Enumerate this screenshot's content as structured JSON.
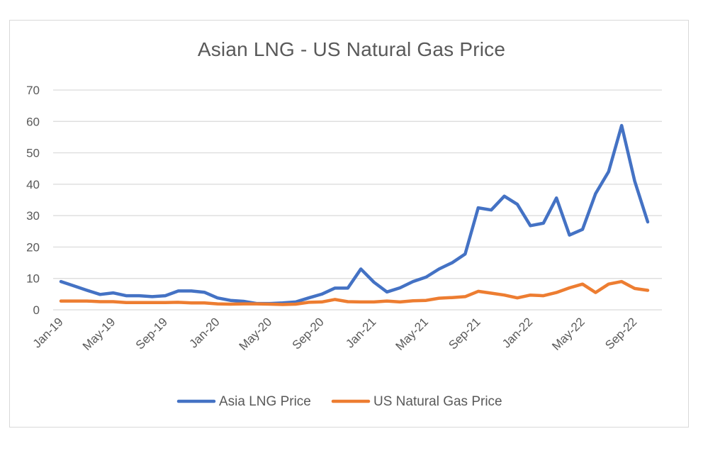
{
  "chart_data": {
    "type": "line",
    "title": "Asian LNG - US Natural Gas Price",
    "xlabel": "",
    "ylabel": "",
    "ylim": [
      0,
      70
    ],
    "yticks": [
      "0",
      "10",
      "20",
      "30",
      "40",
      "50",
      "60",
      "70"
    ],
    "x": [
      "Jan-19",
      "Feb-19",
      "Mar-19",
      "Apr-19",
      "May-19",
      "Jun-19",
      "Jul-19",
      "Aug-19",
      "Sep-19",
      "Oct-19",
      "Nov-19",
      "Dec-19",
      "Jan-20",
      "Feb-20",
      "Mar-20",
      "Apr-20",
      "May-20",
      "Jun-20",
      "Jul-20",
      "Aug-20",
      "Sep-20",
      "Oct-20",
      "Nov-20",
      "Dec-20",
      "Jan-21",
      "Feb-21",
      "Mar-21",
      "Apr-21",
      "May-21",
      "Jun-21",
      "Jul-21",
      "Aug-21",
      "Sep-21",
      "Oct-21",
      "Nov-21",
      "Dec-21",
      "Jan-22",
      "Feb-22",
      "Mar-22",
      "Apr-22",
      "May-22",
      "Jun-22",
      "Jul-22",
      "Aug-22",
      "Sep-22",
      "Oct-22"
    ],
    "xticks": [
      "Jan-19",
      "May-19",
      "Sep-19",
      "Jan-20",
      "May-20",
      "Sep-20",
      "Jan-21",
      "May-21",
      "Sep-21",
      "Jan-22",
      "May-22",
      "Sep-22"
    ],
    "grid": true,
    "legend": "bottom",
    "series": [
      {
        "name": "Asia LNG Price",
        "color": "#4472c4",
        "values": [
          9.0,
          7.6,
          6.2,
          4.9,
          5.4,
          4.5,
          4.5,
          4.2,
          4.5,
          6.0,
          6.0,
          5.6,
          3.8,
          3.0,
          2.7,
          2.0,
          2.0,
          2.2,
          2.5,
          3.8,
          5.0,
          6.9,
          6.9,
          13.0,
          8.8,
          5.7,
          7.0,
          9.0,
          10.4,
          13.0,
          15.0,
          17.8,
          32.5,
          31.8,
          36.2,
          33.6,
          26.8,
          27.6,
          35.6,
          23.8,
          25.6,
          37.0,
          44.0,
          58.7,
          41.0,
          28.0
        ]
      },
      {
        "name": "US Natural Gas Price",
        "color": "#ed7d31",
        "values": [
          2.8,
          2.8,
          2.8,
          2.6,
          2.6,
          2.3,
          2.3,
          2.3,
          2.3,
          2.4,
          2.2,
          2.2,
          1.9,
          1.8,
          1.9,
          1.9,
          1.8,
          1.7,
          1.8,
          2.4,
          2.5,
          3.3,
          2.6,
          2.5,
          2.5,
          2.8,
          2.5,
          2.9,
          3.0,
          3.7,
          3.9,
          4.2,
          5.9,
          5.3,
          4.7,
          3.8,
          4.7,
          4.5,
          5.5,
          7.0,
          8.2,
          5.5,
          8.2,
          9.0,
          6.8,
          6.2
        ]
      }
    ]
  }
}
